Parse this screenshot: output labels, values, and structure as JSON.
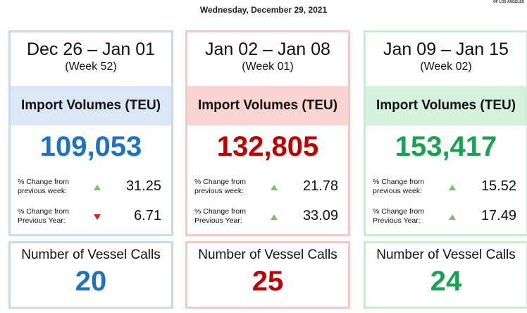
{
  "header": {
    "date": "Wednesday, December 29, 2021",
    "logo": "OF LOS ANGELES"
  },
  "import_label": "Import Volumes (TEU)",
  "vessel_label": "Number of Vessel Calls",
  "weeks": [
    {
      "range": "Dec 26 – Jan 01",
      "week": "(Week 52)",
      "teu": "109,053",
      "vessels": "20",
      "border": "#c9daf0",
      "band": "#dae7f7",
      "color": "#1f72c0",
      "changes": [
        {
          "label": "% Change from previous week:",
          "direction": "up",
          "arrow_color": "#7dbf6a",
          "value": "31.25"
        },
        {
          "label": "% Change from Previous Year:",
          "direction": "down",
          "arrow_color": "#d62020",
          "value": "6.71"
        }
      ]
    },
    {
      "range": "Jan 02 – Jan 08",
      "week": "(Week 01)",
      "teu": "132,805",
      "vessels": "25",
      "border": "#f4c7c3",
      "band": "#f9d4d1",
      "color": "#c00000",
      "changes": [
        {
          "label": "% Change from previous week:",
          "direction": "up",
          "arrow_color": "#7dbf6a",
          "value": "21.78"
        },
        {
          "label": "% Change from Previous Year:",
          "direction": "up",
          "arrow_color": "#7dbf6a",
          "value": "33.09"
        }
      ]
    },
    {
      "range": "Jan 09 – Jan 15",
      "week": "(Week 02)",
      "teu": "153,417",
      "vessels": "24",
      "border": "#c6ecd4",
      "band": "#d5f2df",
      "color": "#17a351",
      "changes": [
        {
          "label": "% Change from previous week:",
          "direction": "up",
          "arrow_color": "#7dbf6a",
          "value": "15.52"
        },
        {
          "label": "% Change from Previous Year:",
          "direction": "up",
          "arrow_color": "#7dbf6a",
          "value": "17.49"
        }
      ]
    }
  ]
}
